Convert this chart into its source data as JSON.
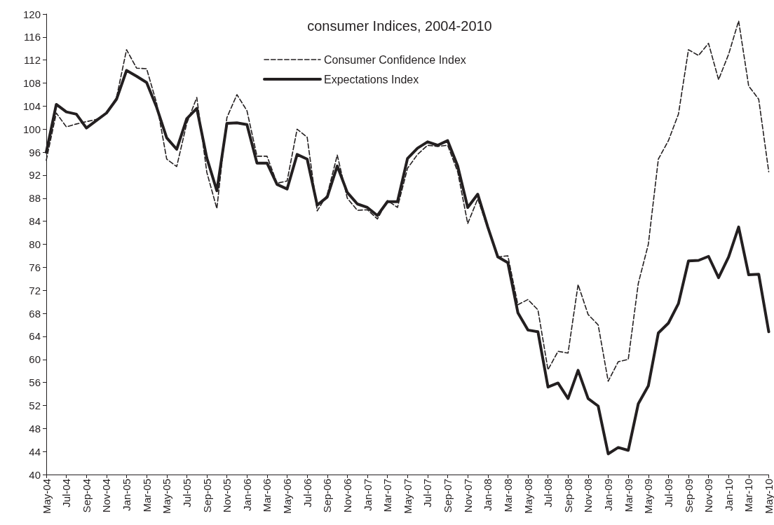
{
  "chart_data": {
    "type": "line",
    "title": "consumer Indices, 2004-2010",
    "categories": [
      "May-04",
      null,
      "Jul-04",
      null,
      "Sep-04",
      null,
      "Nov-04",
      null,
      "Jan-05",
      null,
      "Mar-05",
      null,
      "May-05",
      null,
      "Jul-05",
      null,
      "Sep-05",
      null,
      "Nov-05",
      null,
      "Jan-06",
      null,
      "Mar-06",
      null,
      "May-06",
      null,
      "Jul-06",
      null,
      "Sep-06",
      null,
      "Nov-06",
      null,
      "Jan-07",
      null,
      "Mar-07",
      null,
      "May-07",
      null,
      "Jul-07",
      null,
      "Sep-07",
      null,
      "Nov-07",
      null,
      "Jan-08",
      null,
      "Mar-08",
      null,
      "May-08",
      null,
      "Jul-08",
      null,
      "Sep-08",
      null,
      "Nov-08",
      null,
      "Jan-09",
      null,
      "Mar-09",
      null,
      "May-09",
      null,
      "Jul-09",
      null,
      "Sep-09",
      null,
      "Nov-09",
      null,
      "Jan-10",
      null,
      "Mar-10",
      null,
      "May-10"
    ],
    "series": [
      {
        "name": "Consumer Confidence Index",
        "color": "#231f20",
        "line_style": "dashed",
        "values": [
          94.6,
          102.8,
          100.4,
          100.9,
          101.3,
          101.7,
          102.7,
          105.5,
          113.8,
          110.6,
          110.5,
          104.5,
          94.8,
          93.5,
          101,
          105.5,
          92.5,
          86.2,
          102,
          106,
          103.2,
          95.3,
          95.3,
          90.6,
          91,
          100,
          98.6,
          85.8,
          88.6,
          95.5,
          88,
          85.9,
          86,
          84.4,
          87.6,
          86.4,
          93.2,
          95.6,
          97.2,
          97,
          97.2,
          92.6,
          83.6,
          87.9,
          82.8,
          77.8,
          78,
          69.5,
          70.4,
          68.6,
          58.2,
          61.4,
          61.1,
          73,
          67.8,
          66,
          56.2,
          59.6,
          60,
          73.2,
          80,
          94.8,
          98,
          102.6,
          113.8,
          112.8,
          114.9,
          108.6,
          113,
          118.8,
          107.5,
          105.2,
          92.6
        ]
      },
      {
        "name": "Expectations Index",
        "color": "#231f20",
        "line_style": "solid",
        "values": [
          96,
          104.3,
          103,
          102.6,
          100.2,
          101.5,
          102.8,
          105.2,
          110.2,
          109.2,
          108.1,
          103.8,
          98.5,
          96.5,
          101.8,
          103.6,
          95,
          89.3,
          101,
          101.1,
          100.8,
          94.1,
          94.1,
          90.4,
          89.6,
          95.6,
          94.8,
          86.8,
          88.2,
          93.6,
          89,
          87,
          86.4,
          85,
          87.4,
          87.4,
          94.9,
          96.7,
          97.8,
          97.2,
          98,
          93.6,
          86.4,
          88.7,
          83,
          77.8,
          76.8,
          68.1,
          65.1,
          64.8,
          55.2,
          55.9,
          53.2,
          58.1,
          53.2,
          51.9,
          43.6,
          44.7,
          44.2,
          52.3,
          55.4,
          64.6,
          66.3,
          69.7,
          77.1,
          77.2,
          77.9,
          74.2,
          77.8,
          83,
          74.7,
          74.8,
          64.8
        ]
      }
    ],
    "ylim": [
      40,
      120
    ],
    "yticks": [
      40,
      44,
      48,
      52,
      56,
      60,
      64,
      68,
      72,
      76,
      80,
      84,
      88,
      92,
      96,
      100,
      104,
      108,
      112,
      116,
      120
    ],
    "grid": false,
    "legend": "top",
    "marker": "none"
  }
}
